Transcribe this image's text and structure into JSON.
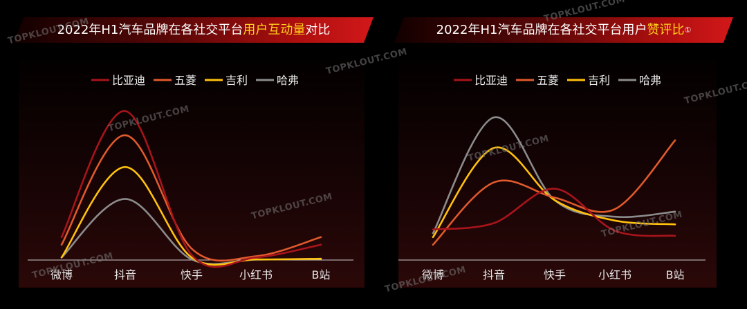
{
  "charts": [
    {
      "title_prefix": "2022年H1汽车品牌在各社交平台",
      "title_highlight": "用户互动量",
      "title_suffix": "对比"
    },
    {
      "title_prefix": "2022年H1汽车品牌在各社交平台用户",
      "title_highlight": "赞评比",
      "title_suffix": "①"
    }
  ],
  "watermark": "TOPKLOUT.COM",
  "colors": {
    "比亚迪": "#a8141c",
    "五菱": "#e05a2c",
    "吉利": "#ffc20e",
    "哈弗": "#8c8c8c",
    "highlight": "#ffd21a"
  },
  "chart_data": [
    {
      "type": "line",
      "title": "2022年H1汽车品牌在各社交平台用户互动量对比",
      "categories": [
        "微博",
        "抖音",
        "快手",
        "小红书",
        "B站"
      ],
      "series": [
        {
          "name": "比亚迪",
          "values": [
            18,
            117,
            4,
            2,
            12
          ]
        },
        {
          "name": "五菱",
          "values": [
            12,
            98,
            9,
            3,
            18
          ]
        },
        {
          "name": "吉利",
          "values": [
            2,
            73,
            2,
            0.5,
            1
          ]
        },
        {
          "name": "哈弗",
          "values": [
            2,
            48,
            0.5,
            0.3,
            1
          ]
        }
      ],
      "ylim": [
        0,
        130
      ],
      "legend": "top-center",
      "grid": false
    },
    {
      "type": "line",
      "title": "2022年H1汽车品牌在各社交平台用户赞评比①",
      "categories": [
        "微博",
        "抖音",
        "快手",
        "小红书",
        "B站"
      ],
      "series": [
        {
          "name": "比亚迪",
          "values": [
            24,
            29,
            56,
            23,
            19
          ]
        },
        {
          "name": "五菱",
          "values": [
            12,
            61,
            49,
            40,
            94
          ]
        },
        {
          "name": "吉利",
          "values": [
            18,
            88,
            47,
            31,
            28
          ]
        },
        {
          "name": "哈弗",
          "values": [
            21,
            112,
            47,
            34,
            38
          ]
        }
      ],
      "ylim": [
        0,
        130
      ],
      "legend": "top-center",
      "grid": false
    }
  ]
}
